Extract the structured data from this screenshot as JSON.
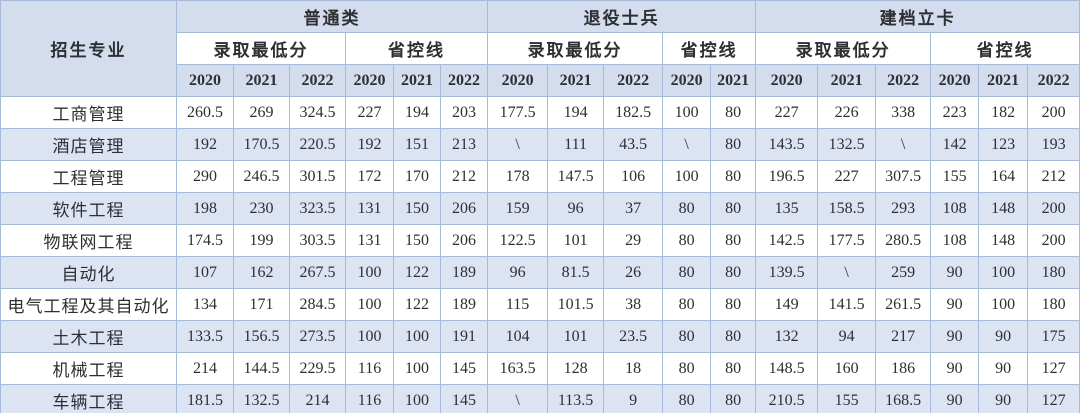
{
  "table": {
    "corner": "招生专业",
    "groups": [
      {
        "label": "普通类"
      },
      {
        "label": "退役士兵"
      },
      {
        "label": "建档立卡"
      }
    ],
    "subheaders": [
      "录取最低分",
      "省控线",
      "录取最低分",
      "省控线",
      "录取最低分",
      "省控线"
    ],
    "years": [
      "2020",
      "2021",
      "2022",
      "2020",
      "2021",
      "2022",
      "2020",
      "2021",
      "2022",
      "2020",
      "2021",
      "2020",
      "2021",
      "2022",
      "2020",
      "2021",
      "2022"
    ],
    "rows": [
      {
        "major": "工商管理",
        "values": [
          "260.5",
          "269",
          "324.5",
          "227",
          "194",
          "203",
          "177.5",
          "194",
          "182.5",
          "100",
          "80",
          "227",
          "226",
          "338",
          "223",
          "182",
          "200"
        ]
      },
      {
        "major": "酒店管理",
        "values": [
          "192",
          "170.5",
          "220.5",
          "192",
          "151",
          "213",
          "\\",
          "111",
          "43.5",
          "\\",
          "80",
          "143.5",
          "132.5",
          "\\",
          "142",
          "123",
          "193"
        ]
      },
      {
        "major": "工程管理",
        "values": [
          "290",
          "246.5",
          "301.5",
          "172",
          "170",
          "212",
          "178",
          "147.5",
          "106",
          "100",
          "80",
          "196.5",
          "227",
          "307.5",
          "155",
          "164",
          "212"
        ]
      },
      {
        "major": "软件工程",
        "values": [
          "198",
          "230",
          "323.5",
          "131",
          "150",
          "206",
          "159",
          "96",
          "37",
          "80",
          "80",
          "135",
          "158.5",
          "293",
          "108",
          "148",
          "200"
        ]
      },
      {
        "major": "物联网工程",
        "values": [
          "174.5",
          "199",
          "303.5",
          "131",
          "150",
          "206",
          "122.5",
          "101",
          "29",
          "80",
          "80",
          "142.5",
          "177.5",
          "280.5",
          "108",
          "148",
          "200"
        ]
      },
      {
        "major": "自动化",
        "values": [
          "107",
          "162",
          "267.5",
          "100",
          "122",
          "189",
          "96",
          "81.5",
          "26",
          "80",
          "80",
          "139.5",
          "\\",
          "259",
          "90",
          "100",
          "180"
        ]
      },
      {
        "major": "电气工程及其自动化",
        "values": [
          "134",
          "171",
          "284.5",
          "100",
          "122",
          "189",
          "115",
          "101.5",
          "38",
          "80",
          "80",
          "149",
          "141.5",
          "261.5",
          "90",
          "100",
          "180"
        ]
      },
      {
        "major": "土木工程",
        "values": [
          "133.5",
          "156.5",
          "273.5",
          "100",
          "100",
          "191",
          "104",
          "101",
          "23.5",
          "80",
          "80",
          "132",
          "94",
          "217",
          "90",
          "90",
          "175"
        ]
      },
      {
        "major": "机械工程",
        "values": [
          "214",
          "144.5",
          "229.5",
          "116",
          "100",
          "145",
          "163.5",
          "128",
          "18",
          "80",
          "80",
          "148.5",
          "160",
          "186",
          "90",
          "90",
          "127"
        ]
      },
      {
        "major": "车辆工程",
        "values": [
          "181.5",
          "132.5",
          "214",
          "116",
          "100",
          "145",
          "\\",
          "113.5",
          "9",
          "80",
          "80",
          "210.5",
          "155",
          "168.5",
          "90",
          "90",
          "127"
        ]
      }
    ]
  }
}
